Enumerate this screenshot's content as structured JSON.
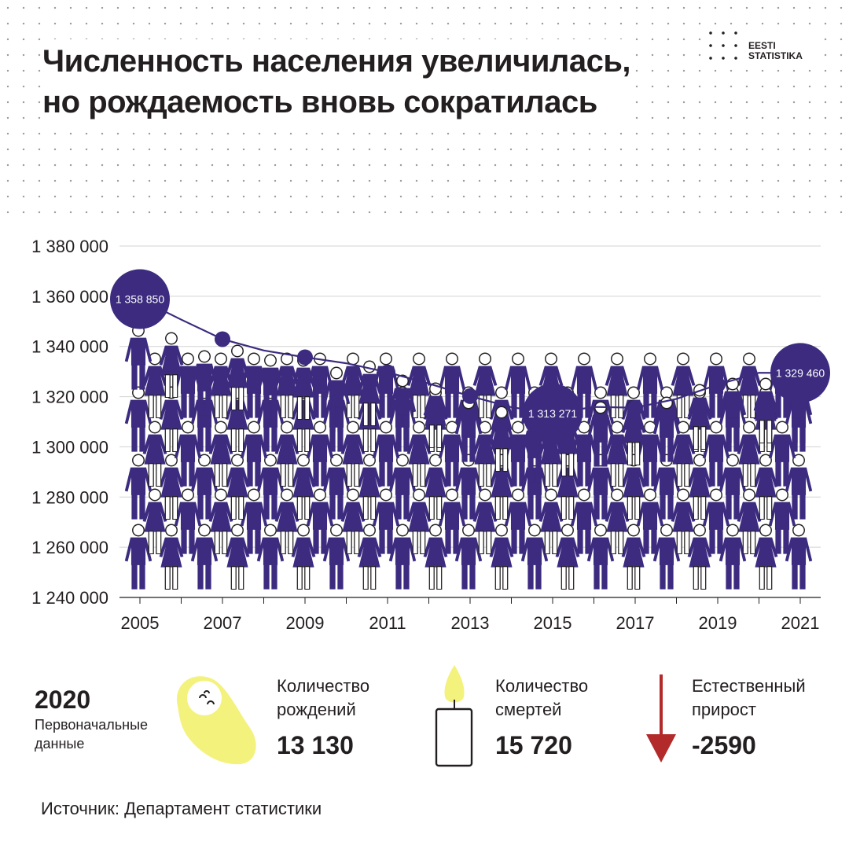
{
  "header": {
    "title_line1": "Численность населения увеличилась,",
    "title_line2": "но рождаемость вновь сократилась"
  },
  "logo": {
    "line1": "EESTI",
    "line2": "STATISTIKA"
  },
  "colors": {
    "primary": "#3c2b7f",
    "baby": "#f3f27c",
    "arrow": "#b22a29",
    "grid": "#d3d3d3"
  },
  "chart_data": {
    "type": "line",
    "title": "",
    "xlabel": "",
    "ylabel": "",
    "ylim": [
      1240000,
      1380000
    ],
    "yticks": [
      1240000,
      1260000,
      1280000,
      1300000,
      1320000,
      1340000,
      1360000,
      1380000
    ],
    "ytick_labels": [
      "1 240 000",
      "1 260 000",
      "1 280 000",
      "1 300 000",
      "1 320 000",
      "1 340 000",
      "1 360 000",
      "1 380 000"
    ],
    "xtick_labels": [
      "2005",
      "2007",
      "2009",
      "2011",
      "2013",
      "2015",
      "2017",
      "2019",
      "2021"
    ],
    "grid": true,
    "series": [
      {
        "x": [
          2005,
          2006,
          2007,
          2008,
          2009,
          2010,
          2011,
          2012,
          2013,
          2014,
          2015,
          2016,
          2017,
          2018,
          2019,
          2020,
          2021
        ],
        "values": [
          1358850,
          1350700,
          1342900,
          1338400,
          1335700,
          1333300,
          1329700,
          1325200,
          1320200,
          1315800,
          1313271,
          1315900,
          1315600,
          1319100,
          1324800,
          1329500,
          1329460
        ]
      }
    ],
    "labeled_points": [
      {
        "x": 2005,
        "label": "1 358 850"
      },
      {
        "x": 2015,
        "label": "1 313 271"
      },
      {
        "x": 2021,
        "label": "1 329 460"
      }
    ],
    "marker_years": [
      2007,
      2009,
      2011,
      2013,
      2017,
      2019
    ]
  },
  "stats": {
    "year": "2020",
    "note": "Первоначальные данные",
    "births": {
      "label_line1": "Количество",
      "label_line2": "рождений",
      "value": "13 130"
    },
    "deaths": {
      "label_line1": "Количество",
      "label_line2": "смертей",
      "value": "15 720"
    },
    "natural": {
      "label_line1": "Естественный",
      "label_line2": "прирост",
      "value": "-2590"
    },
    "icons": {
      "births": "swaddled-baby-icon",
      "deaths": "candle-icon",
      "natural": "down-arrow-icon"
    }
  },
  "source": "Источник: Департамент статистики"
}
